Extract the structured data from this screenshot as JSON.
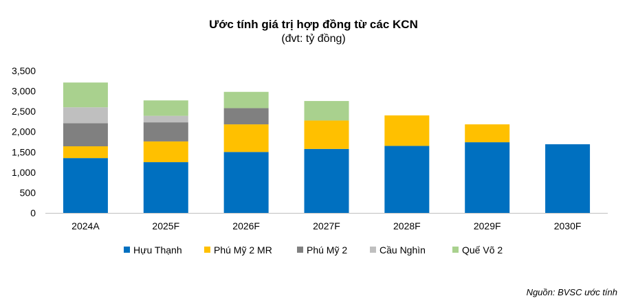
{
  "chart_data": {
    "type": "bar",
    "stacked": true,
    "title": "Ước tính giá trị hợp đồng từ các KCN",
    "subtitle": "(đvt: tỷ đồng)",
    "xlabel": "",
    "ylabel": "",
    "categories": [
      "2024A",
      "2025F",
      "2026F",
      "2027F",
      "2028F",
      "2029F",
      "2030F"
    ],
    "ylim": [
      0,
      3500
    ],
    "yticks": [
      0,
      500,
      1000,
      1500,
      2000,
      2500,
      3000,
      3500
    ],
    "ytick_labels": [
      "0",
      "500",
      "1,000",
      "1,500",
      "2,000",
      "2,500",
      "3,000",
      "3,500"
    ],
    "grid": false,
    "legend_position": "bottom",
    "series": [
      {
        "name": "Hựu Thạnh",
        "color": "#0070C0",
        "values": [
          1350,
          1250,
          1500,
          1575,
          1650,
          1740,
          1690
        ]
      },
      {
        "name": "Phú Mỹ 2 MR",
        "color": "#FFC000",
        "values": [
          290,
          510,
          680,
          700,
          750,
          440,
          0
        ]
      },
      {
        "name": "Phú Mỹ 2",
        "color": "#808080",
        "values": [
          570,
          470,
          400,
          0,
          0,
          0,
          0
        ]
      },
      {
        "name": "Cầu Nghìn",
        "color": "#BFBFBF",
        "values": [
          390,
          160,
          0,
          0,
          0,
          0,
          0
        ]
      },
      {
        "name": "Quế Võ 2",
        "color": "#A9D18E",
        "values": [
          610,
          380,
          400,
          480,
          0,
          0,
          0
        ]
      }
    ]
  },
  "source": "Nguồn: BVSC ước tính"
}
